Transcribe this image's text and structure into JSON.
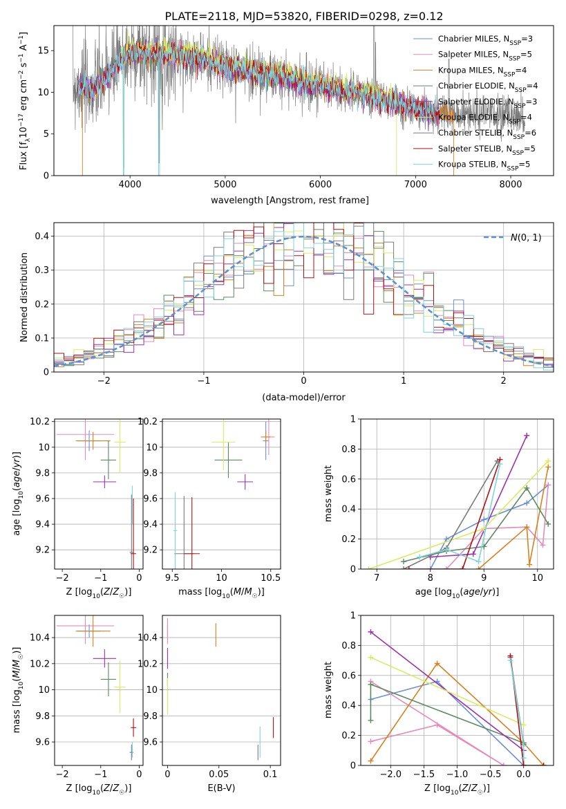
{
  "figure": {
    "suptitle": "PLATE=2118, MJD=53820, FIBERID=0298, z=0.12"
  },
  "models": [
    {
      "label": "Chabrier MILES, N",
      "nssp": "=3",
      "color": "#6a8fd8"
    },
    {
      "label": "Salpeter MILES, N",
      "nssp": "=5",
      "color": "#e889b8"
    },
    {
      "label": "Kroupa MILES, N",
      "nssp": "=4",
      "color": "#d6801f"
    },
    {
      "label": "Chabrier ELODIE, N",
      "nssp": "=4",
      "color": "#5a8a60"
    },
    {
      "label": "Salpeter ELODIE, N",
      "nssp": "=3",
      "color": "#9b30b0"
    },
    {
      "label": "Kroupa ELODIE, N",
      "nssp": "=4",
      "color": "#d8ec60"
    },
    {
      "label": "Chabrier STELIB, N",
      "nssp": "=6",
      "color": "#7a7a7a"
    },
    {
      "label": "Salpeter STELIB, N",
      "nssp": "=5",
      "color": "#b01010"
    },
    {
      "label": "Kroupa STELIB, N",
      "nssp": "=5",
      "color": "#7dd4dc"
    }
  ],
  "chart_data": [
    {
      "type": "line",
      "id": "spectrum",
      "title": "PLATE=2118, MJD=53820, FIBERID=0298, z=0.12",
      "xlabel": "wavelength [Angstrom, rest frame]",
      "ylabel_parts": [
        "Flux [f",
        "λ",
        "10",
        "−17",
        " erg cm",
        "−2",
        " s",
        "−1",
        " A",
        "−1",
        "]"
      ],
      "xlim": [
        3200,
        8450
      ],
      "ylim": [
        0,
        18
      ],
      "xticks": [
        4000,
        5000,
        6000,
        7000,
        8000
      ],
      "yticks": [
        0,
        5,
        10,
        15
      ],
      "continuum": [
        [
          3450,
          10.8
        ],
        [
          3600,
          10.2
        ],
        [
          3800,
          12.4
        ],
        [
          4000,
          14.8
        ],
        [
          4300,
          14.6
        ],
        [
          4700,
          14.2
        ],
        [
          5000,
          13.0
        ],
        [
          5500,
          12.0
        ],
        [
          6000,
          10.8
        ],
        [
          6500,
          9.6
        ],
        [
          7000,
          8.0
        ],
        [
          7300,
          7.3
        ]
      ],
      "data_range": [
        3400,
        8150
      ]
    },
    {
      "type": "area",
      "id": "residual-histogram",
      "xlabel": "(data-model)/error",
      "ylabel": "Normed distribution",
      "xlim": [
        -2.5,
        2.5
      ],
      "ylim": [
        0,
        0.44
      ],
      "xticks": [
        -2,
        -1,
        0,
        1,
        2
      ],
      "yticks": [
        0.0,
        0.1,
        0.2,
        0.3,
        0.4
      ],
      "grid": true,
      "legend": "N(0,1)",
      "legend_placement": "top-right",
      "bin_width": 0.1,
      "gaussian_color": "#5b8fd9"
    },
    {
      "type": "scatter",
      "id": "age-vs-Z",
      "xlabel": "Z [log10(Z/Z☉)]",
      "ylabel": "age  [log10(age/yr)]",
      "xlim": [
        -2.2,
        0.1
      ],
      "ylim": [
        9.05,
        10.22
      ],
      "xticks": [
        -2,
        -1,
        0
      ],
      "yticks": [
        9.2,
        9.4,
        9.6,
        9.8,
        10.0,
        10.2
      ],
      "points": [
        {
          "model": 0,
          "x": -1.3,
          "y": 10.05,
          "xerr": 0.3,
          "yerr": 0.08
        },
        {
          "model": 1,
          "x": -1.4,
          "y": 10.1,
          "xerr": 0.75,
          "yerr": 0.2
        },
        {
          "model": 2,
          "x": -1.2,
          "y": 10.05,
          "xerr": 0.45,
          "yerr": 0.07
        },
        {
          "model": 3,
          "x": -0.8,
          "y": 9.9,
          "xerr": 0.2,
          "yerr": 0.15
        },
        {
          "model": 4,
          "x": -0.9,
          "y": 9.73,
          "xerr": 0.3,
          "yerr": 0.05
        },
        {
          "model": 5,
          "x": -0.5,
          "y": 10.04,
          "xerr": 0.15,
          "yerr": 0.24
        },
        {
          "model": 6,
          "x": -0.2,
          "y": 9.18,
          "xerr": 0.05,
          "yerr": 0.45
        },
        {
          "model": 7,
          "x": -0.15,
          "y": 9.17,
          "xerr": 0.07,
          "yerr": 0.43
        },
        {
          "model": 8,
          "x": -0.18,
          "y": 9.55,
          "xerr": 0.02,
          "yerr": 0.15
        }
      ]
    },
    {
      "type": "scatter",
      "id": "age-vs-mass",
      "xlabel": "mass [log10(M/M☉)]",
      "ylabel": "",
      "xlim": [
        9.4,
        10.6
      ],
      "ylim": [
        9.05,
        10.22
      ],
      "xticks": [
        9.5,
        10.0,
        10.5
      ],
      "yticks": [
        9.2,
        9.4,
        9.6,
        9.8,
        10.0,
        10.2
      ],
      "points": [
        {
          "model": 0,
          "x": 10.45,
          "y": 10.05,
          "xerr": 0.03,
          "yerr": 0.15
        },
        {
          "model": 1,
          "x": 10.48,
          "y": 10.08,
          "xerr": 0.06,
          "yerr": 0.14
        },
        {
          "model": 2,
          "x": 10.45,
          "y": 10.08,
          "xerr": 0.05,
          "yerr": 0.05
        },
        {
          "model": 3,
          "x": 10.07,
          "y": 9.9,
          "xerr": 0.14,
          "yerr": 0.14
        },
        {
          "model": 4,
          "x": 10.24,
          "y": 9.73,
          "xerr": 0.08,
          "yerr": 0.06
        },
        {
          "model": 5,
          "x": 10.02,
          "y": 10.04,
          "xerr": 0.12,
          "yerr": 0.22
        },
        {
          "model": 6,
          "x": 9.62,
          "y": 9.17,
          "xerr": 0.1,
          "yerr": 0.45
        },
        {
          "model": 7,
          "x": 9.7,
          "y": 9.17,
          "xerr": 0.08,
          "yerr": 0.44
        },
        {
          "model": 8,
          "x": 9.53,
          "y": 9.35,
          "xerr": 0.02,
          "yerr": 0.3
        }
      ]
    },
    {
      "type": "line",
      "id": "mass-weight-vs-age",
      "xlabel": "age  [log10(age/yr)]",
      "ylabel": "mass weight",
      "xlim": [
        6.7,
        10.3
      ],
      "ylim": [
        0,
        1
      ],
      "xticks": [
        7,
        8,
        9,
        10
      ],
      "yticks": [
        0.0,
        0.2,
        0.4,
        0.6,
        0.8,
        1.0
      ],
      "grid": true,
      "series": [
        {
          "model": 0,
          "points": [
            [
              8.0,
              0.0
            ],
            [
              8.3,
              0.2
            ],
            [
              9.0,
              0.33
            ],
            [
              9.8,
              0.44
            ],
            [
              10.2,
              0.56
            ]
          ]
        },
        {
          "model": 1,
          "points": [
            [
              8.3,
              0.0
            ],
            [
              9.0,
              0.27
            ],
            [
              9.8,
              0.28
            ],
            [
              10.1,
              0.16
            ],
            [
              10.2,
              0.56
            ]
          ]
        },
        {
          "model": 2,
          "points": [
            [
              8.9,
              0.0
            ],
            [
              9.8,
              0.28
            ],
            [
              9.85,
              0.03
            ],
            [
              10.2,
              0.68
            ]
          ]
        },
        {
          "model": 3,
          "points": [
            [
              7.5,
              0.05
            ],
            [
              8.3,
              0.12
            ],
            [
              9.0,
              0.15
            ],
            [
              9.8,
              0.54
            ],
            [
              10.2,
              0.3
            ]
          ]
        },
        {
          "model": 4,
          "points": [
            [
              8.0,
              0.08
            ],
            [
              8.8,
              0.1
            ],
            [
              9.8,
              0.89
            ]
          ]
        },
        {
          "model": 5,
          "points": [
            [
              6.85,
              0.0
            ],
            [
              9.0,
              0.27
            ],
            [
              10.2,
              0.72
            ]
          ]
        },
        {
          "model": 6,
          "points": [
            [
              7.5,
              0.0
            ],
            [
              8.3,
              0.14
            ],
            [
              9.25,
              0.72
            ]
          ]
        },
        {
          "model": 7,
          "points": [
            [
              7.6,
              0.0
            ],
            [
              8.6,
              0.0
            ],
            [
              9.3,
              0.73
            ]
          ]
        },
        {
          "model": 8,
          "points": [
            [
              7.8,
              0.08
            ],
            [
              8.3,
              0.13
            ],
            [
              8.9,
              0.05
            ],
            [
              9.3,
              0.7
            ]
          ]
        }
      ]
    },
    {
      "type": "scatter",
      "id": "mass-vs-Z",
      "xlabel": "Z [log10(Z/Z☉)]",
      "ylabel": "mass [log10(M/M☉)]",
      "xlim": [
        -2.2,
        0.1
      ],
      "ylim": [
        9.42,
        10.57
      ],
      "xticks": [
        -2,
        -1,
        0
      ],
      "yticks": [
        9.6,
        9.8,
        10.0,
        10.2,
        10.4
      ],
      "points": [
        {
          "model": 0,
          "x": -1.3,
          "y": 10.45,
          "xerr": 0.3,
          "yerr": 0.05
        },
        {
          "model": 1,
          "x": -1.4,
          "y": 10.49,
          "xerr": 0.75,
          "yerr": 0.14
        },
        {
          "model": 2,
          "x": -1.2,
          "y": 10.45,
          "xerr": 0.45,
          "yerr": 0.12
        },
        {
          "model": 3,
          "x": -0.8,
          "y": 10.08,
          "xerr": 0.2,
          "yerr": 0.13
        },
        {
          "model": 4,
          "x": -0.9,
          "y": 10.24,
          "xerr": 0.3,
          "yerr": 0.07
        },
        {
          "model": 5,
          "x": -0.5,
          "y": 10.02,
          "xerr": 0.15,
          "yerr": 0.2
        },
        {
          "model": 6,
          "x": -0.2,
          "y": 9.52,
          "xerr": 0.05,
          "yerr": 0.06
        },
        {
          "model": 7,
          "x": -0.15,
          "y": 9.71,
          "xerr": 0.07,
          "yerr": 0.07
        },
        {
          "model": 8,
          "x": -0.18,
          "y": 9.54,
          "xerr": 0.02,
          "yerr": 0.06
        }
      ]
    },
    {
      "type": "scatter",
      "id": "mass-vs-ebv",
      "xlabel": "E(B-V)",
      "ylabel": "",
      "xlim": [
        -0.005,
        0.11
      ],
      "ylim": [
        9.42,
        10.57
      ],
      "xticks": [
        0.0,
        0.05,
        0.1
      ],
      "yticks": [
        9.6,
        9.8,
        10.0,
        10.2,
        10.4
      ],
      "points": [
        {
          "model": 0,
          "x": 0.0,
          "y": 10.45,
          "xerr": 0.0,
          "yerr": 0.05
        },
        {
          "model": 1,
          "x": 0.0,
          "y": 10.45,
          "xerr": 0.0,
          "yerr": 0.1
        },
        {
          "model": 2,
          "x": 0.047,
          "y": 10.42,
          "xerr": 0.0,
          "yerr": 0.09
        },
        {
          "model": 3,
          "x": 0.0,
          "y": 10.08,
          "xerr": 0.0,
          "yerr": 0.05
        },
        {
          "model": 4,
          "x": 0.0,
          "y": 10.24,
          "xerr": 0.0,
          "yerr": 0.08
        },
        {
          "model": 5,
          "x": 0.0,
          "y": 9.95,
          "xerr": 0.0,
          "yerr": 0.14
        },
        {
          "model": 6,
          "x": 0.088,
          "y": 9.52,
          "xerr": 0.0,
          "yerr": 0.06
        },
        {
          "model": 7,
          "x": 0.103,
          "y": 9.71,
          "xerr": 0.0,
          "yerr": 0.08
        },
        {
          "model": 8,
          "x": 0.09,
          "y": 9.6,
          "xerr": 0.0,
          "yerr": 0.12
        }
      ]
    },
    {
      "type": "line",
      "id": "mass-weight-vs-Z",
      "xlabel": "Z [log10(Z/Z☉)]",
      "ylabel": "mass weight",
      "xlim": [
        -2.45,
        0.45
      ],
      "ylim": [
        0,
        1
      ],
      "xticks": [
        -2.0,
        -1.5,
        -1.0,
        -0.5,
        0.0
      ],
      "yticks": [
        0.0,
        0.2,
        0.4,
        0.6,
        0.8,
        1.0
      ],
      "grid": true,
      "series": [
        {
          "model": 0,
          "points": [
            [
              -2.3,
              0.44
            ],
            [
              -1.3,
              0.56
            ],
            [
              0.0,
              0.0
            ]
          ]
        },
        {
          "model": 1,
          "points": [
            [
              -2.3,
              0.16
            ],
            [
              -1.3,
              0.27
            ],
            [
              -0.3,
              0.0
            ],
            [
              -2.3,
              0.56
            ]
          ]
        },
        {
          "model": 2,
          "points": [
            [
              -2.3,
              0.03
            ],
            [
              -1.3,
              0.68
            ],
            [
              0.0,
              0.15
            ],
            [
              0.3,
              0.0
            ]
          ]
        },
        {
          "model": 3,
          "points": [
            [
              -2.3,
              0.3
            ],
            [
              -2.3,
              0.54
            ],
            [
              0.0,
              0.15
            ],
            [
              0.0,
              0.0
            ]
          ]
        },
        {
          "model": 4,
          "points": [
            [
              -2.3,
              0.89
            ],
            [
              0.0,
              0.1
            ]
          ]
        },
        {
          "model": 5,
          "points": [
            [
              -2.3,
              0.72
            ],
            [
              0.0,
              0.27
            ]
          ]
        },
        {
          "model": 6,
          "points": [
            [
              -0.2,
              0.72
            ],
            [
              0.0,
              0.14
            ],
            [
              0.0,
              0.0
            ]
          ]
        },
        {
          "model": 7,
          "points": [
            [
              -0.2,
              0.73
            ],
            [
              0.0,
              0.0
            ],
            [
              0.3,
              0.0
            ]
          ]
        },
        {
          "model": 8,
          "points": [
            [
              -0.2,
              0.7
            ],
            [
              0.0,
              0.13
            ],
            [
              0.0,
              0.05
            ]
          ]
        }
      ]
    }
  ]
}
